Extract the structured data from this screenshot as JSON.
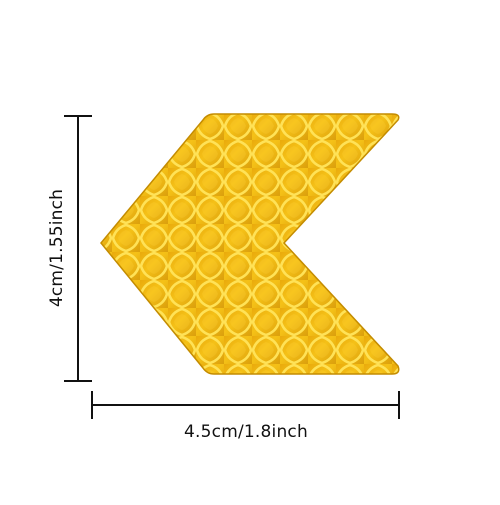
{
  "product": {
    "description_icon": "chevron-arrow-reflector-icon",
    "colors": {
      "reflector_base": "#F2B705",
      "reflector_light": "#FFD84A",
      "reflector_dark": "#B88400",
      "grid_lines": "#FFE566",
      "dimension_lines": "#111111"
    }
  },
  "dimensions": {
    "height_label": "4cm/1.55inch",
    "width_label": "4.5cm/1.8inch"
  }
}
